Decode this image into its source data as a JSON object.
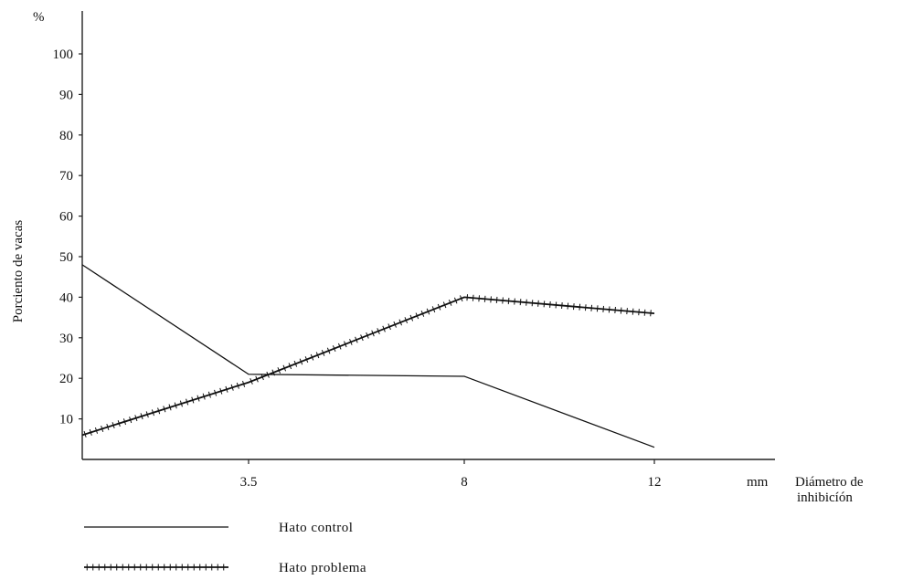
{
  "chart_data": {
    "type": "line",
    "title": "",
    "ylabel": "Porciento de vacas",
    "yunit": "%",
    "xunit": "mm",
    "xlabel": [
      "Diámetro de",
      "inhibicíón"
    ],
    "ylim": [
      0,
      110
    ],
    "yticks": [
      10,
      20,
      30,
      40,
      50,
      60,
      70,
      80,
      90,
      100
    ],
    "xticks": [
      "3.5",
      "8",
      "12"
    ],
    "grid": false,
    "legend_position": "bottom-left",
    "series": [
      {
        "name": "Hato control",
        "style": "plain",
        "points": [
          [
            "0",
            48
          ],
          [
            "3.5",
            21
          ],
          [
            "8",
            20.5
          ],
          [
            "12",
            3
          ]
        ]
      },
      {
        "name": "Hato problema",
        "style": "hatched",
        "points": [
          [
            "0",
            6
          ],
          [
            "3.5",
            19
          ],
          [
            "8",
            40
          ],
          [
            "12",
            36
          ]
        ]
      }
    ]
  }
}
